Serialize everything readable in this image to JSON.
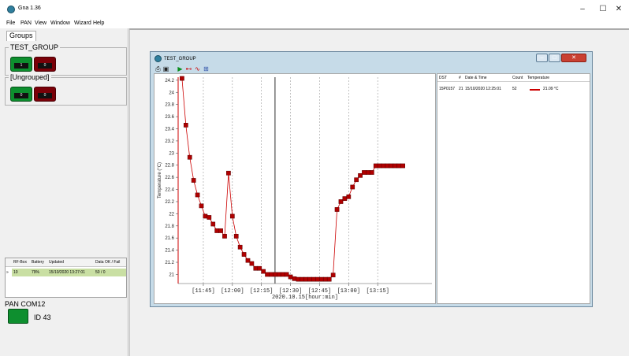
{
  "app": {
    "title": "Gna 1.36"
  },
  "window_controls": {
    "minimize": "–",
    "maximize": "☐",
    "close": "✕"
  },
  "menu": [
    "File",
    "PAN",
    "View",
    "Window",
    "Wizard",
    "Help"
  ],
  "left": {
    "groups_tab": "Groups",
    "groups": [
      {
        "name": "TEST_GROUP",
        "ok_count": "1",
        "fail_count": "0"
      },
      {
        "name": "[Ungrouped]",
        "ok_count": "0",
        "fail_count": "0"
      }
    ]
  },
  "rfbox_table": {
    "headers": [
      "RF-Box",
      "Battery",
      "Updated",
      "Data OK / Fail"
    ],
    "rows": [
      {
        "marker": "»",
        "rfbox": "10",
        "battery": "79%",
        "updated": "15/10/2020 13:27:01",
        "data": "50 / 0"
      }
    ]
  },
  "pan": {
    "title": "PAN COM12",
    "id": "ID 43"
  },
  "chart_window": {
    "title": "TEST_GROUP",
    "button_minimize": "–",
    "button_maximize": "□",
    "button_close": "✕"
  },
  "toolbar": {
    "print_icon": "printer-icon",
    "save_icon": "save-icon",
    "play_icon": "play-icon",
    "icons": [
      "marker-line-icon",
      "curve-icon",
      "chart-icon"
    ]
  },
  "chart_data": {
    "type": "line",
    "xlabel": "2020.10.15[hour:min]",
    "ylabel": "Temperature (°C)",
    "ylim": [
      20.85,
      24.25
    ],
    "xlim_minutes": [
      692,
      823
    ],
    "yticks": [
      "24.2",
      "24",
      "23.8",
      "23.6",
      "23.4",
      "23.2",
      "23",
      "22.8",
      "22.6",
      "22.4",
      "22.2",
      "22",
      "21.8",
      "21.6",
      "21.4",
      "21.2",
      "21"
    ],
    "xticks": [
      "[11:45]",
      "[12:00]",
      "[12:15]",
      "[12:30]",
      "[12:45]",
      "[13:00]",
      "[13:15]"
    ],
    "xtick_minutes": [
      705,
      720,
      735,
      750,
      765,
      780,
      795
    ],
    "grid": "x-dashed",
    "cursor_minute": 742,
    "series": [
      {
        "color": "#cc0000",
        "x": [
          694,
          696,
          698,
          700,
          702,
          704,
          706,
          708,
          710,
          712,
          714,
          716,
          718,
          720,
          722,
          724,
          726,
          728,
          730,
          732,
          734,
          736,
          738,
          740,
          742,
          744,
          746,
          748,
          750,
          752,
          754,
          756,
          758,
          760,
          762,
          764,
          766,
          768,
          770,
          772,
          774,
          776,
          778,
          780,
          782,
          784,
          786,
          788,
          790,
          792,
          794,
          796,
          798,
          800,
          802,
          804,
          806,
          808
        ],
        "y": [
          24.23,
          23.46,
          22.93,
          22.55,
          22.31,
          22.13,
          21.96,
          21.94,
          21.83,
          21.72,
          21.72,
          21.63,
          22.67,
          21.96,
          21.63,
          21.45,
          21.33,
          21.23,
          21.18,
          21.1,
          21.1,
          21.05,
          21.0,
          21.0,
          21.0,
          21.0,
          21.0,
          21.0,
          20.96,
          20.93,
          20.92,
          20.92,
          20.92,
          20.92,
          20.92,
          20.92,
          20.92,
          20.92,
          20.92,
          20.99,
          22.07,
          22.2,
          22.25,
          22.28,
          22.44,
          22.56,
          22.63,
          22.68,
          22.68,
          22.68,
          22.79,
          22.79,
          22.79,
          22.79,
          22.79,
          22.79,
          22.79,
          22.79
        ]
      }
    ]
  },
  "readings": {
    "headers": [
      "DST",
      "#",
      "Date & Time",
      "Count",
      "Temperature"
    ],
    "rows": [
      {
        "dst": "15P0157",
        "num": "21",
        "datetime": "15/10/2020 12:25:01",
        "count": "52",
        "temperature": "21.09 °C"
      }
    ]
  }
}
